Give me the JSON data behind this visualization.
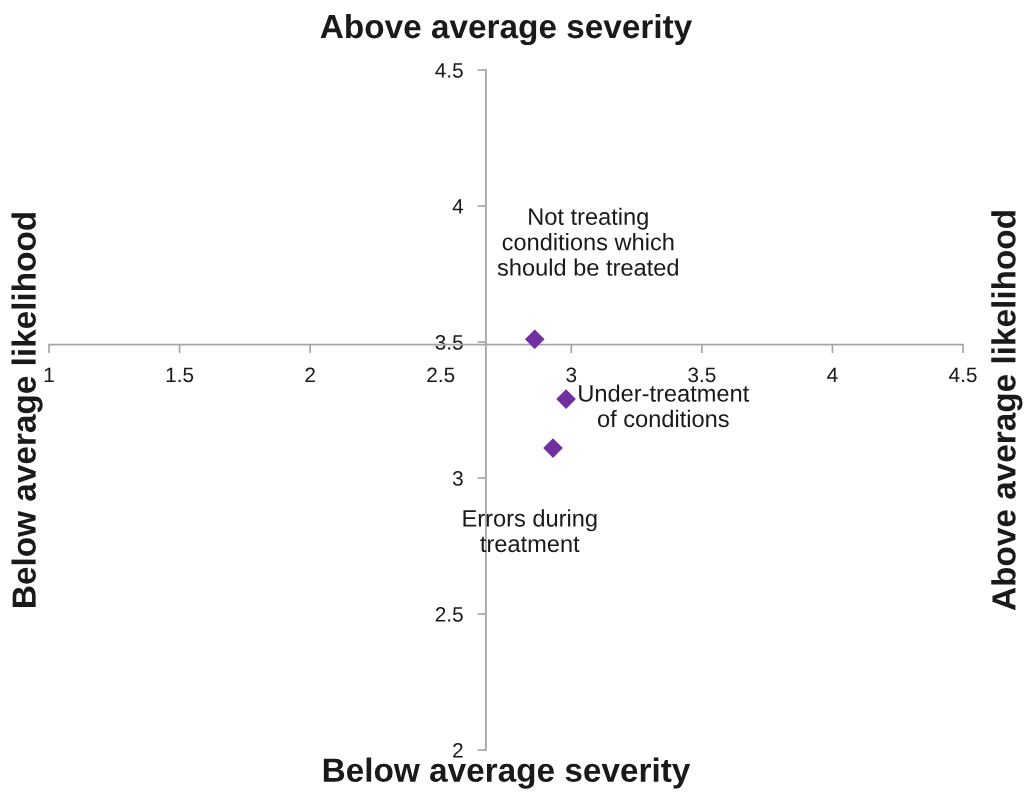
{
  "chart_data": {
    "type": "scatter",
    "title": "Above average severity",
    "xlabel": "Below average severity",
    "ylabel": "Below average likelihood",
    "y2label": "Above average likelihood",
    "series": [
      {
        "x": [
          2.86,
          2.98,
          2.93
        ],
        "values": [
          3.51,
          3.29,
          3.11
        ],
        "color": "#7030a0"
      }
    ],
    "marker": "diamond",
    "xlim": [
      1,
      4.5
    ],
    "xticks": [
      1,
      1.5,
      2,
      2.5,
      3,
      3.5,
      4,
      4.5
    ],
    "ylim": [
      2,
      4.5
    ],
    "yticks": [
      2,
      2.5,
      3,
      3.5,
      4,
      4.5
    ],
    "annotations": [
      "Not treating\nconditions which\nshould be treated",
      {
        "text": "Under-treatment\nof conditions",
        "x": 2.98,
        "y": 3.29
      },
      "Errors during\ntreatment"
    ]
  }
}
